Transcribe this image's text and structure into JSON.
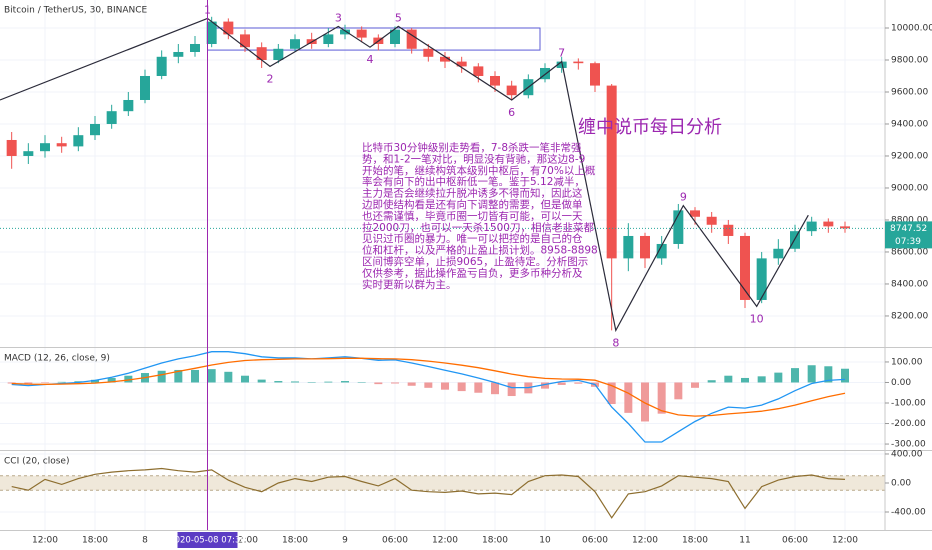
{
  "chart_data": [
    {
      "type": "candlestick",
      "title": "Bitcoin / TetherUS, 30, BINANCE",
      "x": [
        8,
        10,
        12,
        14,
        16,
        18,
        20,
        22,
        24,
        26,
        28,
        30,
        32,
        34,
        36,
        38,
        40,
        42,
        44,
        46,
        48,
        50,
        52,
        54,
        56,
        58,
        60,
        62,
        64,
        66,
        68,
        70,
        72,
        74,
        76,
        78,
        80,
        82,
        84,
        86,
        88,
        90,
        92,
        94,
        96,
        98,
        100,
        102,
        104,
        106,
        108
      ],
      "open": [
        9300,
        9200,
        9230,
        9280,
        9260,
        9330,
        9400,
        9480,
        9550,
        9700,
        9820,
        9850,
        9900,
        10040,
        9960,
        9880,
        9800,
        9870,
        9930,
        9900,
        9960,
        9990,
        9940,
        9900,
        9990,
        9870,
        9820,
        9790,
        9760,
        9700,
        9640,
        9580,
        9680,
        9750,
        9790,
        9780,
        9640,
        8560,
        8700,
        8560,
        8650,
        8860,
        8820,
        8770,
        8700,
        8300,
        8560,
        8620,
        8730,
        8790,
        8760
      ],
      "high": [
        9350,
        9280,
        9330,
        9320,
        9380,
        9450,
        9520,
        9600,
        9740,
        9860,
        9900,
        9950,
        10070,
        10060,
        9990,
        9910,
        9900,
        9960,
        9970,
        10000,
        10020,
        10010,
        9960,
        10010,
        10000,
        9900,
        9850,
        9820,
        9780,
        9730,
        9670,
        9710,
        9780,
        9820,
        9810,
        9790,
        9650,
        8780,
        8720,
        8700,
        8900,
        8880,
        8850,
        8800,
        8720,
        8600,
        8680,
        8770,
        8820,
        8810,
        8790
      ],
      "low": [
        9120,
        9150,
        9190,
        9220,
        9230,
        9300,
        9370,
        9450,
        9530,
        9680,
        9780,
        9820,
        9880,
        9930,
        9850,
        9750,
        9780,
        9850,
        9870,
        9880,
        9930,
        9910,
        9860,
        9880,
        9840,
        9790,
        9750,
        9720,
        9660,
        9600,
        9550,
        9560,
        9660,
        9720,
        9740,
        9600,
        8110,
        8480,
        8500,
        8520,
        8620,
        8770,
        8720,
        8650,
        8250,
        8280,
        8520,
        8600,
        8700,
        8720,
        8720
      ],
      "close": [
        9200,
        9230,
        9280,
        9260,
        9330,
        9400,
        9480,
        9550,
        9700,
        9820,
        9850,
        9900,
        10040,
        9960,
        9880,
        9800,
        9870,
        9930,
        9900,
        9960,
        9990,
        9940,
        9900,
        9990,
        9870,
        9820,
        9790,
        9760,
        9700,
        9640,
        9580,
        9680,
        9750,
        9790,
        9780,
        9640,
        8560,
        8700,
        8560,
        8650,
        8860,
        8820,
        8770,
        8700,
        8300,
        8560,
        8620,
        8730,
        8790,
        8760,
        8747.52
      ],
      "up_color": "#26a69a",
      "down_color": "#ef5350",
      "xlim": [
        6.6,
        112.8
      ],
      "ylim": [
        8006,
        10175
      ],
      "yticks": [
        {
          "value": 8200,
          "label": "8200.00"
        },
        {
          "value": 8400,
          "label": "8400.00"
        },
        {
          "value": 8600,
          "label": "8600.00"
        },
        {
          "value": 8800,
          "label": "8800.00"
        },
        {
          "value": 9000,
          "label": "9000.00"
        },
        {
          "value": 9200,
          "label": "9200.00"
        },
        {
          "value": 9400,
          "label": "9400.00"
        },
        {
          "value": 9600,
          "label": "9600.00"
        },
        {
          "value": 9800,
          "label": "9800.00"
        },
        {
          "value": 10000,
          "label": "10000.00"
        }
      ],
      "grid": true,
      "last_price": 8747.52,
      "countdown": "07:39",
      "crosshair": {
        "x": 31.5,
        "label": "2020-05-08 07:30"
      },
      "box": {
        "xlim": [
          31.5,
          71.4
        ],
        "ylim": [
          9862,
          10000
        ],
        "color": "#5b5bd6"
      },
      "wave_color": "#2b2b3a",
      "waves": [
        {
          "label": null,
          "x": 6.6,
          "price": 9550
        },
        {
          "label": "1",
          "x": 31.5,
          "price": 10060
        },
        {
          "label": "2",
          "x": 39,
          "price": 9760
        },
        {
          "label": "3",
          "x": 47.2,
          "price": 10010
        },
        {
          "label": "4",
          "x": 51,
          "price": 9880
        },
        {
          "label": "5",
          "x": 54.4,
          "price": 10010
        },
        {
          "label": "6",
          "x": 68,
          "price": 9550
        },
        {
          "label": "7",
          "x": 74,
          "price": 9790
        },
        {
          "label": "8",
          "x": 80.5,
          "price": 8110
        },
        {
          "label": "9",
          "x": 88.6,
          "price": 8890
        },
        {
          "label": "10",
          "x": 97.4,
          "price": 8260
        },
        {
          "label": null,
          "x": 103.6,
          "price": 8830
        }
      ],
      "heading": "缠中说币每日分析",
      "annotation_lines": [
        "比特币30分钟级别走势看，7-8杀跌一笔非常强",
        "势，和1-2一笔对比，明显没有背驰，那这边8-9",
        "开始的笔，继续构筑本级别中枢后，有70%以上概",
        "率会有向下的出中枢新低一笔。鉴于5.12减半，",
        "主力是否会继续拉升脱冲诱多不得而知，因此这",
        "边即使结构看是还有向下调整的需要，但是做单",
        "也还需谨慎，毕竟币圈一切皆有可能，可以一天",
        "拉2000刀，也可以一天杀1500刀，相信老韭菜都",
        "见识过币圈的暴力。唯一可以把控的是自己的仓",
        "位和杠杆，以及严格的止盈止损计划。8958-8898",
        "区间博弈空单，止损9065，止盈待定。分析图示",
        "仅供参考，据此操作盈亏自负，更多币种分析及",
        "实时更新以群为主。"
      ]
    },
    {
      "type": "macd",
      "title": "MACD (12, 26, close, 9)",
      "x": [
        8,
        10,
        12,
        14,
        16,
        18,
        20,
        22,
        24,
        26,
        28,
        30,
        32,
        34,
        36,
        38,
        40,
        42,
        44,
        46,
        48,
        50,
        52,
        54,
        56,
        58,
        60,
        62,
        64,
        66,
        68,
        70,
        72,
        74,
        76,
        78,
        80,
        82,
        84,
        86,
        88,
        90,
        92,
        94,
        96,
        98,
        100,
        102,
        104,
        106,
        108
      ],
      "histogram": [
        -5,
        -7,
        -1,
        3,
        6,
        13,
        22,
        33,
        46,
        57,
        61,
        61,
        65,
        52,
        33,
        14,
        7,
        5,
        0,
        4,
        7,
        0,
        -8,
        -5,
        -16,
        -26,
        -35,
        -42,
        -50,
        -57,
        -66,
        -53,
        -30,
        -12,
        -6,
        -21,
        -105,
        -148,
        -190,
        -152,
        -82,
        -26,
        11,
        33,
        22,
        30,
        48,
        70,
        84,
        79,
        67
      ],
      "macd": [
        -10,
        -15,
        -10,
        -5,
        0,
        10,
        25,
        45,
        70,
        95,
        115,
        130,
        150,
        150,
        140,
        125,
        120,
        120,
        115,
        120,
        125,
        118,
        108,
        110,
        95,
        78,
        60,
        42,
        22,
        0,
        -25,
        -25,
        -10,
        5,
        10,
        -10,
        -120,
        -200,
        -290,
        -290,
        -240,
        -190,
        -150,
        -120,
        -125,
        -110,
        -80,
        -40,
        -5,
        10,
        15
      ],
      "signal": [
        -5,
        -8,
        -9,
        -8,
        -6,
        -3,
        3,
        12,
        24,
        38,
        54,
        69,
        85,
        98,
        107,
        111,
        113,
        115,
        115,
        116,
        118,
        118,
        116,
        115,
        111,
        104,
        95,
        84,
        72,
        57,
        41,
        28,
        20,
        17,
        16,
        11,
        -15,
        -52,
        -100,
        -138,
        -158,
        -164,
        -161,
        -153,
        -147,
        -140,
        -128,
        -110,
        -89,
        -69,
        -52
      ],
      "macd_color": "#2196f3",
      "signal_color": "#ff6d00",
      "pos_color": "#4db6ac",
      "neg_color": "#ef9a9a",
      "xlim": [
        6.6,
        112.8
      ],
      "ylim": [
        -329,
        168
      ],
      "yticks": [
        {
          "value": 100,
          "label": "100.00"
        },
        {
          "value": 0,
          "label": "0.00"
        },
        {
          "value": -100,
          "label": "-100.00"
        },
        {
          "value": -200,
          "label": "-200.00"
        },
        {
          "value": -300,
          "label": "-300.00"
        }
      ]
    },
    {
      "type": "line",
      "title": "CCI (20, close)",
      "x": [
        8,
        10,
        12,
        14,
        16,
        18,
        20,
        22,
        24,
        26,
        28,
        30,
        32,
        34,
        36,
        38,
        40,
        42,
        44,
        46,
        48,
        50,
        52,
        54,
        56,
        58,
        60,
        62,
        64,
        66,
        68,
        70,
        72,
        74,
        76,
        78,
        80,
        82,
        84,
        86,
        88,
        90,
        92,
        94,
        96,
        98,
        100,
        102,
        104,
        106,
        108
      ],
      "values": [
        -50,
        -100,
        50,
        -20,
        60,
        120,
        150,
        170,
        180,
        200,
        170,
        150,
        180,
        40,
        -60,
        -120,
        0,
        60,
        20,
        80,
        90,
        20,
        -40,
        60,
        -100,
        -120,
        -130,
        -110,
        -150,
        -140,
        -160,
        20,
        100,
        110,
        90,
        -120,
        -480,
        -150,
        -120,
        -40,
        100,
        80,
        60,
        20,
        -350,
        -50,
        40,
        90,
        110,
        60,
        50
      ],
      "color": "#8d6e2f",
      "band": [
        -100,
        100
      ],
      "band_color": "#efe8da",
      "xlim": [
        6.6,
        112.8
      ],
      "ylim": [
        -648,
        441
      ],
      "yticks": [
        {
          "value": 400,
          "label": "400.00"
        },
        {
          "value": 0,
          "label": "0.00"
        },
        {
          "value": -400,
          "label": "-400.00"
        }
      ],
      "xticks": [
        {
          "value": 12,
          "label": "12:00"
        },
        {
          "value": 18,
          "label": "18:00"
        },
        {
          "value": 24,
          "label": "8"
        },
        {
          "value": 36,
          "label": "12:00"
        },
        {
          "value": 42,
          "label": "18:00"
        },
        {
          "value": 48,
          "label": "9"
        },
        {
          "value": 54,
          "label": "06:00"
        },
        {
          "value": 60,
          "label": "12:00"
        },
        {
          "value": 66,
          "label": "18:00"
        },
        {
          "value": 72,
          "label": "10"
        },
        {
          "value": 78,
          "label": "06:00"
        },
        {
          "value": 84,
          "label": "12:00"
        },
        {
          "value": 90,
          "label": "18:00"
        },
        {
          "value": 96,
          "label": "11"
        },
        {
          "value": 102,
          "label": "06:00"
        },
        {
          "value": 108,
          "label": "12:00"
        }
      ]
    }
  ]
}
